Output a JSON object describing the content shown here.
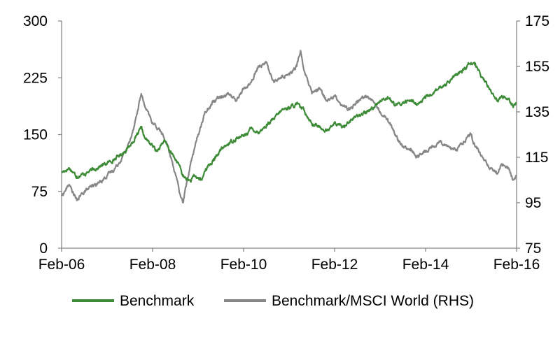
{
  "chart_data": {
    "type": "line",
    "title": "",
    "xlabel": "",
    "ylabel": "",
    "x_ticks": [
      "Feb-06",
      "Feb-08",
      "Feb-10",
      "Feb-12",
      "Feb-14",
      "Feb-16"
    ],
    "ylim_left": [
      0,
      300
    ],
    "ylim_right": [
      75,
      175
    ],
    "y_ticks_left": [
      "0",
      "75",
      "150",
      "225",
      "300"
    ],
    "y_ticks_right": [
      "75",
      "95",
      "115",
      "135",
      "155",
      "175"
    ],
    "grid": false,
    "legend_position": "bottom",
    "series": [
      {
        "name": "Benchmark",
        "axis": "left",
        "color": "#3d8b37",
        "points": [
          [
            "Feb-06",
            100
          ],
          [
            "Apr-06",
            106
          ],
          [
            "Jun-06",
            95
          ],
          [
            "Aug-06",
            98
          ],
          [
            "Oct-06",
            103
          ],
          [
            "Dec-06",
            108
          ],
          [
            "Feb-07",
            112
          ],
          [
            "Apr-07",
            118
          ],
          [
            "Jun-07",
            125
          ],
          [
            "Aug-07",
            135
          ],
          [
            "Oct-07",
            150
          ],
          [
            "Nov-07",
            158
          ],
          [
            "Dec-07",
            145
          ],
          [
            "Feb-08",
            135
          ],
          [
            "Mar-08",
            128
          ],
          [
            "May-08",
            142
          ],
          [
            "Jul-08",
            125
          ],
          [
            "Sep-08",
            110
          ],
          [
            "Oct-08",
            95
          ],
          [
            "Nov-08",
            92
          ],
          [
            "Dec-08",
            88
          ],
          [
            "Jan-09",
            95
          ],
          [
            "Mar-09",
            90
          ],
          [
            "Apr-09",
            105
          ],
          [
            "Jun-09",
            115
          ],
          [
            "Aug-09",
            130
          ],
          [
            "Oct-09",
            138
          ],
          [
            "Dec-09",
            145
          ],
          [
            "Feb-10",
            148
          ],
          [
            "Apr-10",
            158
          ],
          [
            "Jun-10",
            153
          ],
          [
            "Aug-10",
            162
          ],
          [
            "Oct-10",
            170
          ],
          [
            "Dec-10",
            182
          ],
          [
            "Feb-11",
            186
          ],
          [
            "Apr-11",
            190
          ],
          [
            "Jun-11",
            182
          ],
          [
            "Aug-11",
            165
          ],
          [
            "Oct-11",
            160
          ],
          [
            "Dec-11",
            155
          ],
          [
            "Feb-12",
            165
          ],
          [
            "Apr-12",
            160
          ],
          [
            "Jun-12",
            168
          ],
          [
            "Aug-12",
            175
          ],
          [
            "Oct-12",
            178
          ],
          [
            "Dec-12",
            185
          ],
          [
            "Feb-13",
            195
          ],
          [
            "Apr-13",
            200
          ],
          [
            "Jun-13",
            188
          ],
          [
            "Aug-13",
            192
          ],
          [
            "Oct-13",
            195
          ],
          [
            "Dec-13",
            190
          ],
          [
            "Feb-14",
            198
          ],
          [
            "Apr-14",
            205
          ],
          [
            "Jun-14",
            212
          ],
          [
            "Aug-14",
            220
          ],
          [
            "Oct-14",
            228
          ],
          [
            "Dec-14",
            235
          ],
          [
            "Feb-15",
            245
          ],
          [
            "Mar-15",
            242
          ],
          [
            "May-15",
            225
          ],
          [
            "Jul-15",
            210
          ],
          [
            "Sep-15",
            195
          ],
          [
            "Oct-15",
            200
          ],
          [
            "Dec-15",
            198
          ],
          [
            "Jan-16",
            188
          ],
          [
            "Feb-16",
            192
          ]
        ]
      },
      {
        "name": "Benchmark/MSCI World (RHS)",
        "axis": "right",
        "color": "#868686",
        "points": [
          [
            "Feb-06",
            98
          ],
          [
            "Apr-06",
            103
          ],
          [
            "Jun-06",
            96
          ],
          [
            "Aug-06",
            100
          ],
          [
            "Oct-06",
            102
          ],
          [
            "Dec-06",
            104
          ],
          [
            "Feb-07",
            107
          ],
          [
            "Apr-07",
            110
          ],
          [
            "Jun-07",
            115
          ],
          [
            "Aug-07",
            122
          ],
          [
            "Oct-07",
            135
          ],
          [
            "Nov-07",
            143
          ],
          [
            "Dec-07",
            137
          ],
          [
            "Feb-08",
            130
          ],
          [
            "Apr-08",
            127
          ],
          [
            "Jun-08",
            120
          ],
          [
            "Aug-08",
            108
          ],
          [
            "Sep-08",
            100
          ],
          [
            "Oct-08",
            95
          ],
          [
            "Nov-08",
            104
          ],
          [
            "Dec-08",
            112
          ],
          [
            "Feb-09",
            125
          ],
          [
            "Apr-09",
            135
          ],
          [
            "Jun-09",
            140
          ],
          [
            "Aug-09",
            142
          ],
          [
            "Oct-09",
            143
          ],
          [
            "Dec-09",
            140
          ],
          [
            "Feb-10",
            145
          ],
          [
            "Apr-10",
            148
          ],
          [
            "Jun-10",
            155
          ],
          [
            "Aug-10",
            157
          ],
          [
            "Sep-10",
            152
          ],
          [
            "Oct-10",
            148
          ],
          [
            "Dec-10",
            150
          ],
          [
            "Feb-11",
            152
          ],
          [
            "Apr-11",
            155
          ],
          [
            "May-11",
            162
          ],
          [
            "Jun-11",
            153
          ],
          [
            "Aug-11",
            143
          ],
          [
            "Oct-11",
            145
          ],
          [
            "Dec-11",
            140
          ],
          [
            "Feb-12",
            142
          ],
          [
            "Apr-12",
            138
          ],
          [
            "Jun-12",
            136
          ],
          [
            "Aug-12",
            140
          ],
          [
            "Oct-12",
            142
          ],
          [
            "Dec-12",
            140
          ],
          [
            "Feb-13",
            135
          ],
          [
            "Apr-13",
            132
          ],
          [
            "Jun-13",
            125
          ],
          [
            "Aug-13",
            120
          ],
          [
            "Oct-13",
            118
          ],
          [
            "Dec-13",
            115
          ],
          [
            "Feb-14",
            118
          ],
          [
            "Apr-14",
            120
          ],
          [
            "Jun-14",
            122
          ],
          [
            "Aug-14",
            120
          ],
          [
            "Oct-14",
            118
          ],
          [
            "Dec-14",
            122
          ],
          [
            "Feb-15",
            125
          ],
          [
            "Mar-15",
            120
          ],
          [
            "May-15",
            115
          ],
          [
            "Jul-15",
            110
          ],
          [
            "Sep-15",
            108
          ],
          [
            "Oct-15",
            112
          ],
          [
            "Dec-15",
            110
          ],
          [
            "Jan-16",
            105
          ],
          [
            "Feb-16",
            107
          ]
        ]
      }
    ]
  }
}
